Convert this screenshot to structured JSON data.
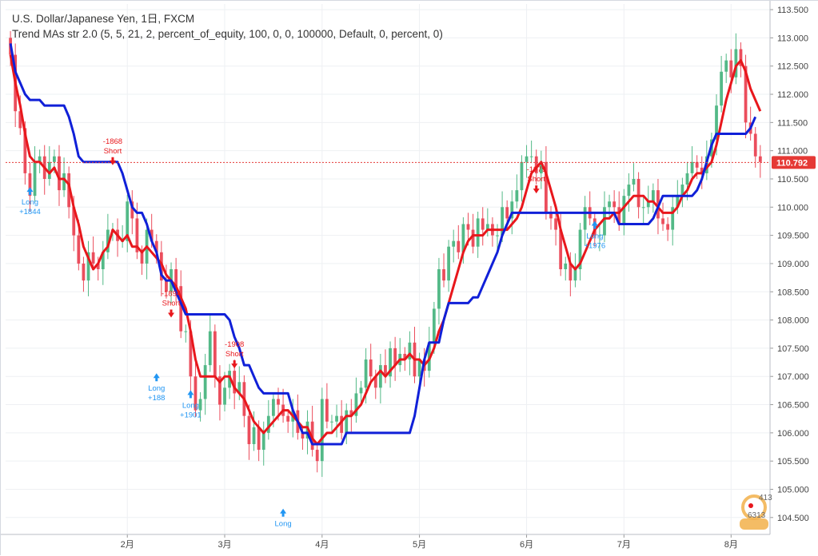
{
  "legend": {
    "symbol_line": "U.S. Dollar/Japanese Yen, 1日, FXCM",
    "indicator_line": "Trend MAs str 2.0 (5, 5, 21, 2, percent_of_equity, 100, 0, 0, 100000, Default, 0, percent, 0)"
  },
  "price_badge": "110.792",
  "watermark": {
    "top": "413",
    "bottom": "6313"
  },
  "colors": {
    "up": "#53b987",
    "down": "#eb4d5c",
    "fast_ma": "#e8171c",
    "slow_ma": "#1020d8",
    "long_signal": "#2196f3",
    "short_signal": "#e8171c",
    "price_line": "#e53935",
    "grid": "#eef0f3",
    "axis_text": "#444444"
  },
  "chart_data": {
    "type": "candlestick",
    "title": "U.S. Dollar/Japanese Yen, 1日, FXCM",
    "ylim": [
      104.2,
      113.6
    ],
    "y_ticks": [
      "104.500",
      "105.000",
      "105.500",
      "106.000",
      "106.500",
      "107.000",
      "107.500",
      "108.000",
      "108.500",
      "109.000",
      "109.500",
      "110.000",
      "110.500",
      "111.000",
      "111.500",
      "112.000",
      "112.500",
      "113.000",
      "113.500"
    ],
    "x_ticks": [
      {
        "label": "2月",
        "index": 24
      },
      {
        "label": "3月",
        "index": 44
      },
      {
        "label": "4月",
        "index": 64
      },
      {
        "label": "5月",
        "index": 84
      },
      {
        "label": "6月",
        "index": 106
      },
      {
        "label": "7月",
        "index": 126
      },
      {
        "label": "8月",
        "index": 148
      }
    ],
    "last_price": 110.792,
    "close": [
      112.7,
      111.7,
      111.4,
      110.6,
      110.2,
      110.8,
      110.9,
      110.5,
      110.8,
      110.9,
      110.3,
      110.6,
      110.0,
      109.5,
      109.0,
      108.7,
      109.2,
      109.0,
      108.9,
      109.2,
      109.6,
      109.6,
      109.4,
      109.4,
      110.1,
      109.8,
      109.2,
      109.0,
      109.6,
      109.4,
      109.2,
      108.7,
      108.5,
      108.9,
      108.6,
      107.8,
      107.8,
      107.0,
      106.4,
      106.6,
      107.2,
      107.8,
      107.0,
      106.5,
      106.8,
      107.1,
      106.7,
      106.9,
      106.3,
      105.8,
      106.1,
      105.7,
      106.0,
      106.3,
      106.6,
      106.5,
      106.3,
      106.2,
      106.4,
      106.0,
      105.9,
      106.2,
      105.7,
      105.5,
      106.6,
      106.2,
      106.2,
      106.3,
      106.0,
      106.4,
      106.3,
      106.7,
      106.8,
      107.3,
      107.0,
      106.8,
      107.2,
      107.0,
      107.5,
      107.2,
      107.4,
      107.3,
      107.6,
      107.0,
      107.3,
      107.1,
      107.6,
      108.2,
      108.9,
      108.7,
      109.3,
      109.4,
      109.2,
      109.7,
      109.6,
      109.3,
      109.8,
      109.6,
      109.7,
      109.5,
      109.5,
      110.0,
      109.8,
      110.1,
      110.3,
      110.8,
      110.9,
      110.9,
      110.6,
      110.8,
      109.9,
      109.8,
      109.6,
      108.9,
      109.0,
      108.7,
      108.9,
      109.6,
      110.0,
      109.8,
      109.5,
      109.5,
      110.0,
      110.1,
      110.0,
      109.7,
      110.2,
      110.4,
      110.5,
      110.0,
      110.0,
      110.1,
      110.3,
      109.8,
      109.7,
      109.6,
      110.0,
      110.2,
      110.4,
      110.6,
      110.8,
      110.7,
      110.6,
      110.9,
      111.2,
      111.8,
      112.4,
      112.6,
      112.3,
      112.8,
      112.5,
      111.5,
      111.3,
      110.9,
      110.8
    ],
    "series": [
      {
        "name": "fast",
        "values": [
          112.7,
          112.2,
          111.8,
          111.3,
          110.9,
          110.8,
          110.8,
          110.7,
          110.6,
          110.7,
          110.5,
          110.5,
          110.4,
          110.0,
          109.7,
          109.3,
          109.1,
          108.9,
          109.0,
          109.2,
          109.3,
          109.6,
          109.5,
          109.4,
          109.5,
          109.3,
          109.3,
          109.2,
          109.3,
          109.2,
          109.1,
          109.0,
          108.8,
          108.7,
          108.6,
          108.4,
          108.2,
          107.8,
          107.3,
          107.0,
          107.0,
          107.0,
          107.0,
          106.9,
          107.0,
          107.0,
          106.8,
          106.7,
          106.6,
          106.4,
          106.2,
          106.1,
          106.0,
          106.1,
          106.2,
          106.3,
          106.4,
          106.4,
          106.3,
          106.2,
          106.1,
          106.1,
          105.9,
          105.8,
          105.9,
          106.0,
          106.0,
          106.1,
          106.2,
          106.3,
          106.3,
          106.4,
          106.5,
          106.7,
          106.9,
          107.0,
          107.1,
          107.0,
          107.1,
          107.2,
          107.3,
          107.3,
          107.4,
          107.3,
          107.3,
          107.2,
          107.3,
          107.5,
          107.8,
          108.0,
          108.3,
          108.6,
          108.9,
          109.2,
          109.4,
          109.5,
          109.5,
          109.5,
          109.6,
          109.6,
          109.6,
          109.6,
          109.6,
          109.7,
          109.8,
          110.0,
          110.3,
          110.6,
          110.7,
          110.8,
          110.6,
          110.3,
          110.0,
          109.6,
          109.3,
          109.0,
          108.9,
          109.0,
          109.2,
          109.4,
          109.6,
          109.7,
          109.8,
          109.8,
          109.9,
          109.9,
          110.0,
          110.1,
          110.2,
          110.2,
          110.2,
          110.1,
          110.1,
          110.0,
          109.9,
          109.9,
          109.9,
          110.0,
          110.2,
          110.3,
          110.5,
          110.6,
          110.6,
          110.7,
          110.8,
          111.1,
          111.5,
          111.9,
          112.2,
          112.5,
          112.6,
          112.4,
          112.1,
          111.9,
          111.7
        ]
      },
      {
        "name": "slow",
        "values": [
          112.9,
          112.4,
          112.2,
          112.0,
          111.9,
          111.9,
          111.9,
          111.8,
          111.8,
          111.8,
          111.8,
          111.8,
          111.6,
          111.3,
          110.9,
          110.8,
          110.8,
          110.8,
          110.8,
          110.8,
          110.8,
          110.8,
          110.8,
          110.6,
          110.3,
          110.0,
          109.9,
          109.9,
          109.7,
          109.4,
          109.2,
          108.8,
          108.7,
          108.7,
          108.5,
          108.3,
          108.1,
          108.1,
          108.1,
          108.1,
          108.1,
          108.1,
          108.1,
          108.1,
          108.1,
          108.0,
          107.7,
          107.5,
          107.2,
          107.2,
          107.0,
          106.8,
          106.7,
          106.7,
          106.7,
          106.7,
          106.7,
          106.7,
          106.4,
          106.2,
          106.0,
          106.0,
          105.8,
          105.8,
          105.8,
          105.8,
          105.8,
          105.8,
          105.8,
          106.0,
          106.0,
          106.0,
          106.0,
          106.0,
          106.0,
          106.0,
          106.0,
          106.0,
          106.0,
          106.0,
          106.0,
          106.0,
          106.0,
          106.3,
          106.8,
          107.3,
          107.6,
          107.6,
          107.6,
          108.0,
          108.3,
          108.3,
          108.3,
          108.3,
          108.3,
          108.4,
          108.4,
          108.6,
          108.8,
          109.0,
          109.2,
          109.5,
          109.7,
          109.9,
          109.9,
          109.9,
          109.9,
          109.9,
          109.9,
          109.9,
          109.9,
          109.9,
          109.9,
          109.9,
          109.9,
          109.9,
          109.9,
          109.9,
          109.9,
          109.9,
          109.9,
          109.9,
          109.9,
          109.9,
          109.9,
          109.7,
          109.7,
          109.7,
          109.7,
          109.7,
          109.7,
          109.7,
          109.8,
          110.0,
          110.2,
          110.2,
          110.2,
          110.2,
          110.2,
          110.2,
          110.2,
          110.3,
          110.5,
          110.8,
          111.1,
          111.3,
          111.3,
          111.3,
          111.3,
          111.3,
          111.3,
          111.3,
          111.4,
          111.6
        ]
      }
    ],
    "annotations": [
      {
        "text": "Long",
        "amount": "+1844",
        "side": "long",
        "index": 4,
        "price": 110.3
      },
      {
        "text": "Short",
        "amount": "-1868",
        "side": "short",
        "index": 21,
        "price": 110.8
      },
      {
        "text": "Long",
        "amount": "+188",
        "side": "long",
        "index": 30,
        "price": 107.0
      },
      {
        "text": "Short",
        "amount": "-1894",
        "side": "short",
        "index": 33,
        "price": 108.1
      },
      {
        "text": "Long",
        "amount": "+1901",
        "side": "long",
        "index": 37,
        "price": 106.7
      },
      {
        "text": "Short",
        "amount": "-1908",
        "side": "short",
        "index": 46,
        "price": 107.2
      },
      {
        "text": "Long",
        "amount": "",
        "side": "long",
        "index": 56,
        "price": 104.6
      },
      {
        "text": "Short",
        "amount": "-1979",
        "side": "short",
        "index": 108,
        "price": 110.3
      },
      {
        "text": "Long",
        "amount": "+1976",
        "side": "long",
        "index": 120,
        "price": 109.7
      }
    ]
  }
}
